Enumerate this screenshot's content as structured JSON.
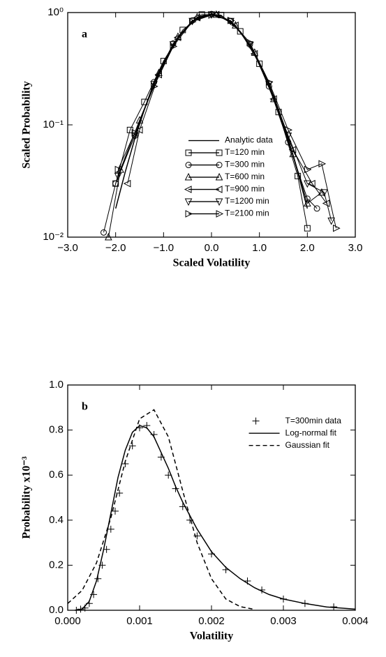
{
  "chart_data": [
    {
      "type": "line",
      "annotation": "a",
      "xlabel": "Scaled Volatility",
      "ylabel": "Scaled Probability",
      "xlim": [
        -3,
        3
      ],
      "ylim": [
        0.01,
        1
      ],
      "log_y": true,
      "legend": "lower center",
      "xticks": [
        {
          "value": -3,
          "label": "−3.0"
        },
        {
          "value": -2,
          "label": "−2.0"
        },
        {
          "value": -1,
          "label": "−1.0"
        },
        {
          "value": 0,
          "label": "0.0"
        },
        {
          "value": 1,
          "label": "1.0"
        },
        {
          "value": 2,
          "label": "2.0"
        },
        {
          "value": 3,
          "label": "3.0"
        }
      ],
      "yticks": [
        {
          "value": 1,
          "label": "10⁰"
        },
        {
          "value": 0.1,
          "label": "10⁻¹"
        },
        {
          "value": 0.01,
          "label": "10⁻²"
        }
      ],
      "series": [
        {
          "name": "Analytic data",
          "color": "#000000",
          "line": "solid",
          "x": [
            -2.0,
            -1.8,
            -1.6,
            -1.4,
            -1.2,
            -1.0,
            -0.8,
            -0.6,
            -0.4,
            -0.2,
            0.0,
            0.2,
            0.4,
            0.6,
            0.8,
            1.0,
            1.2,
            1.4,
            1.6,
            1.8,
            2.0
          ],
          "values": [
            0.018,
            0.038,
            0.075,
            0.137,
            0.23,
            0.357,
            0.511,
            0.677,
            0.827,
            0.932,
            0.97,
            0.932,
            0.827,
            0.677,
            0.511,
            0.357,
            0.23,
            0.137,
            0.075,
            0.038,
            0.018
          ]
        },
        {
          "name": "T=120 min",
          "color": "#000000",
          "line": "solid",
          "marker": "square",
          "x": [
            -2.0,
            -1.7,
            -1.4,
            -1.0,
            -0.6,
            -0.2,
            0.2,
            0.6,
            1.0,
            1.4,
            1.8,
            2.0
          ],
          "values": [
            0.03,
            0.09,
            0.16,
            0.37,
            0.7,
            0.96,
            0.95,
            0.68,
            0.35,
            0.13,
            0.035,
            0.012
          ]
        },
        {
          "name": "T=300 min",
          "color": "#000000",
          "line": "solid",
          "marker": "circle",
          "x": [
            -2.25,
            -2.0,
            -1.6,
            -1.2,
            -0.8,
            -0.4,
            0.0,
            0.4,
            0.8,
            1.2,
            1.6,
            2.0,
            2.2
          ],
          "values": [
            0.011,
            0.03,
            0.08,
            0.24,
            0.53,
            0.85,
            0.97,
            0.84,
            0.52,
            0.22,
            0.07,
            0.022,
            0.018
          ]
        },
        {
          "name": "T=600 min",
          "color": "#000000",
          "line": "solid",
          "marker": "triangle-up",
          "x": [
            -2.15,
            -1.9,
            -1.5,
            -1.1,
            -0.7,
            -0.3,
            0.1,
            0.5,
            0.9,
            1.3,
            1.7,
            2.0,
            2.3
          ],
          "values": [
            0.01,
            0.04,
            0.11,
            0.29,
            0.61,
            0.91,
            0.96,
            0.77,
            0.44,
            0.17,
            0.055,
            0.02,
            0.025
          ]
        },
        {
          "name": "T=900 min",
          "color": "#000000",
          "line": "solid",
          "marker": "triangle-left",
          "x": [
            -1.75,
            -1.5,
            -1.1,
            -0.7,
            -0.3,
            0.1,
            0.5,
            0.9,
            1.3,
            1.7,
            2.1,
            2.4
          ],
          "values": [
            0.03,
            0.09,
            0.28,
            0.6,
            0.9,
            0.96,
            0.77,
            0.43,
            0.17,
            0.06,
            0.03,
            0.02
          ]
        },
        {
          "name": "T=1200 min",
          "color": "#000000",
          "line": "solid",
          "marker": "triangle-down",
          "x": [
            -1.95,
            -1.6,
            -1.2,
            -0.8,
            -0.4,
            0.0,
            0.4,
            0.8,
            1.2,
            1.6,
            2.0,
            2.35,
            2.5
          ],
          "values": [
            0.035,
            0.08,
            0.23,
            0.52,
            0.84,
            0.96,
            0.84,
            0.52,
            0.23,
            0.08,
            0.03,
            0.025,
            0.014
          ]
        },
        {
          "name": "T=2100 min",
          "color": "#000000",
          "line": "solid",
          "marker": "triangle-right",
          "x": [
            -1.95,
            -1.6,
            -1.2,
            -0.8,
            -0.4,
            0.0,
            0.4,
            0.8,
            1.2,
            1.6,
            2.0,
            2.3,
            2.6
          ],
          "values": [
            0.04,
            0.085,
            0.22,
            0.5,
            0.83,
            0.95,
            0.85,
            0.54,
            0.24,
            0.09,
            0.04,
            0.045,
            0.012
          ]
        }
      ]
    },
    {
      "type": "line",
      "annotation": "b",
      "xlabel": "Volatility",
      "ylabel": "Probability x10⁻³",
      "xlim": [
        0,
        0.004
      ],
      "ylim": [
        0,
        1
      ],
      "log_y": false,
      "legend": "upper right",
      "xticks": [
        {
          "value": 0,
          "label": "0.000"
        },
        0.001,
        0.002,
        0.003,
        0.004
      ],
      "yticks": [
        {
          "value": 0,
          "label": "0.0"
        },
        0.2,
        0.4,
        0.6,
        0.8,
        {
          "value": 1,
          "label": "1.0"
        }
      ],
      "series": [
        {
          "name": "T=300min data",
          "color": "#000000",
          "marker": "plus",
          "x": [
            0.00012,
            0.00018,
            0.00024,
            0.0003,
            0.00036,
            0.00042,
            0.00048,
            0.00054,
            0.0006,
            0.00066,
            0.00072,
            0.0008,
            0.0009,
            0.001,
            0.0011,
            0.0012,
            0.0013,
            0.0014,
            0.0015,
            0.0016,
            0.0017,
            0.0018,
            0.002,
            0.0022,
            0.0025,
            0.0027,
            0.003,
            0.0033,
            0.0037
          ],
          "values": [
            0.0,
            0.005,
            0.01,
            0.03,
            0.07,
            0.14,
            0.2,
            0.27,
            0.36,
            0.44,
            0.52,
            0.65,
            0.73,
            0.81,
            0.82,
            0.78,
            0.68,
            0.6,
            0.54,
            0.46,
            0.4,
            0.33,
            0.25,
            0.18,
            0.13,
            0.09,
            0.05,
            0.03,
            0.015
          ]
        },
        {
          "name": "Log-normal fit",
          "color": "#000000",
          "line": "solid",
          "x": [
            0.0001,
            0.0002,
            0.0003,
            0.0004,
            0.0005,
            0.0006,
            0.0007,
            0.0008,
            0.0009,
            0.001,
            0.0011,
            0.0012,
            0.0013,
            0.0014,
            0.0015,
            0.0016,
            0.0018,
            0.002,
            0.0022,
            0.0024,
            0.0026,
            0.0028,
            0.003,
            0.0033,
            0.0036,
            0.004
          ],
          "values": [
            0,
            0.005,
            0.04,
            0.13,
            0.27,
            0.43,
            0.59,
            0.71,
            0.79,
            0.82,
            0.81,
            0.77,
            0.7,
            0.63,
            0.55,
            0.48,
            0.36,
            0.26,
            0.19,
            0.14,
            0.1,
            0.07,
            0.05,
            0.03,
            0.015,
            0.005
          ]
        },
        {
          "name": "Gaussian fit",
          "color": "#000000",
          "line": "dashed",
          "x": [
            0,
            0.0002,
            0.0004,
            0.0006,
            0.0008,
            0.001,
            0.0012,
            0.0014,
            0.0016,
            0.0018,
            0.002,
            0.0022,
            0.0024,
            0.0026
          ],
          "values": [
            0.03,
            0.088,
            0.21,
            0.41,
            0.66,
            0.85,
            0.89,
            0.77,
            0.53,
            0.3,
            0.14,
            0.05,
            0.016,
            0.004
          ]
        }
      ]
    }
  ]
}
